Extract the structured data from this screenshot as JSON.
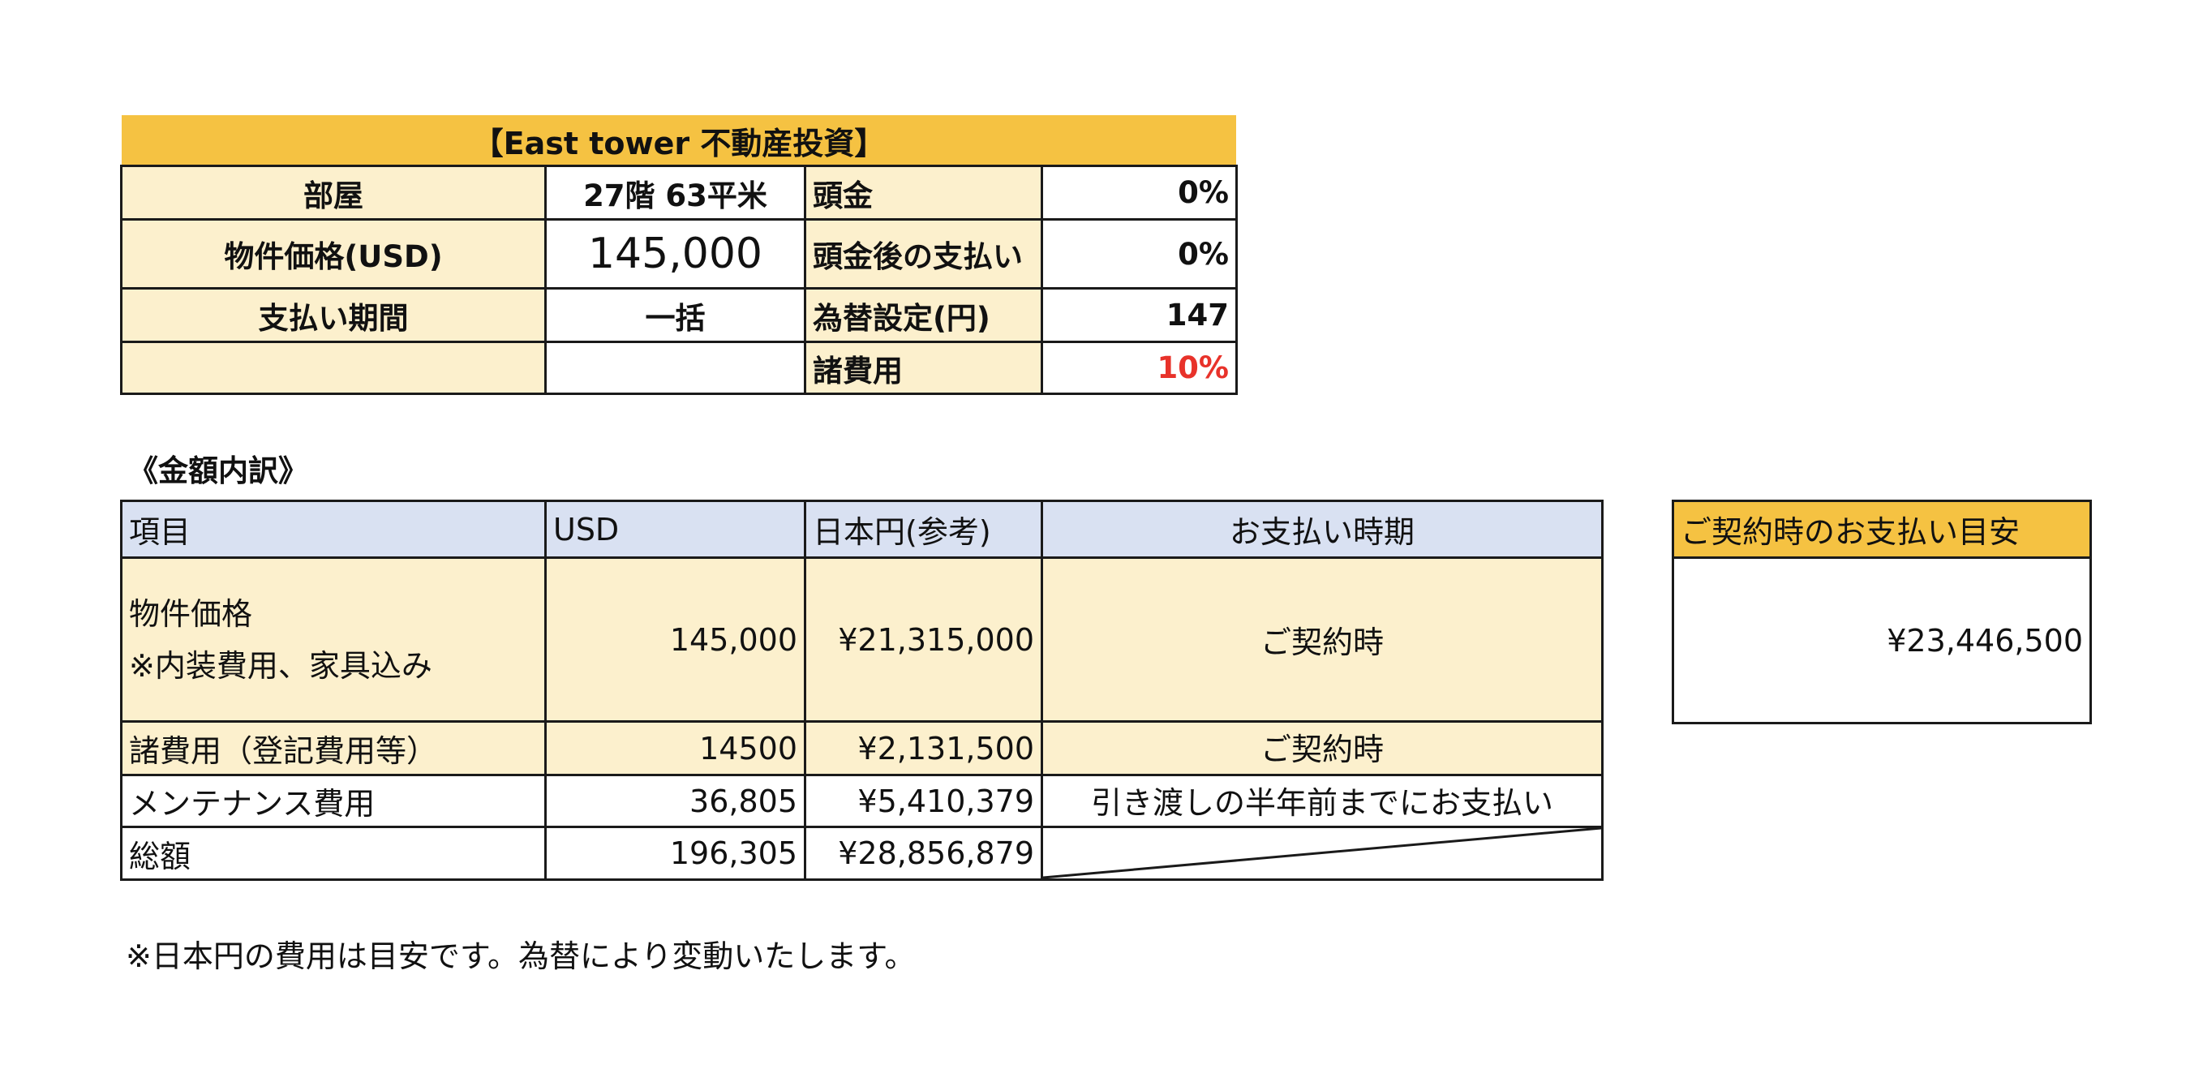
{
  "header": {
    "title": "【East tower 不動産投資】",
    "accent_color": "#f5c242",
    "cream_color": "#fcf0cd"
  },
  "info": {
    "room_label": "部屋",
    "room_value": "27階 63平米",
    "price_label": "物件価格(USD)",
    "price_value": "145,000",
    "period_label": "支払い期間",
    "period_value": "一括",
    "down_label": "頭金",
    "down_value": "0%",
    "after_down_label": "頭金後の支払い",
    "after_down_value": "0%",
    "fx_label": "為替設定(円)",
    "fx_value": "147",
    "fees_label": "諸費用",
    "fees_value": "10%",
    "fees_value_color": "#e8322a"
  },
  "breakdown": {
    "heading": "《金額内訳》",
    "header_color": "#d9e1f2",
    "columns": [
      "項目",
      "USD",
      "日本円(参考)",
      "お支払い時期"
    ],
    "rows": [
      {
        "item": "物件価格",
        "item_note": "※内装費用、家具込み",
        "usd": "145,000",
        "jpy": "¥21,315,000",
        "timing": "ご契約時"
      },
      {
        "item": "諸費用（登記費用等）",
        "usd": "14500",
        "jpy": "¥2,131,500",
        "timing": "ご契約時"
      },
      {
        "item": "メンテナンス費用",
        "usd": "36,805",
        "jpy": "¥5,410,379",
        "timing": "引き渡しの半年前までにお支払い"
      },
      {
        "item": "総額",
        "usd": "196,305",
        "jpy": "¥28,856,879",
        "timing": ""
      }
    ]
  },
  "estimate": {
    "title": "ご契約時のお支払い目安",
    "amount": "¥23,446,500"
  },
  "footnote": "※日本円の費用は目安です。為替により変動いたします。"
}
